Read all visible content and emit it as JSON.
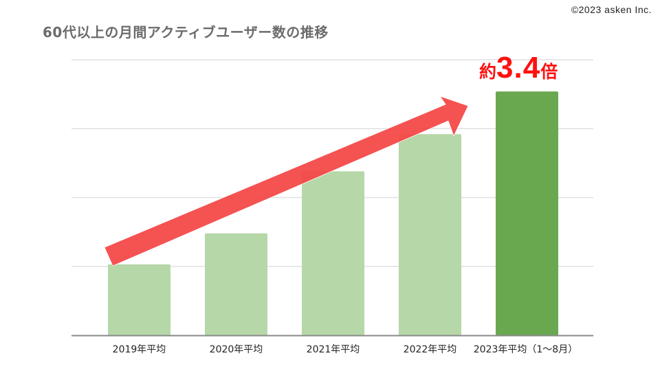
{
  "header": {
    "title": "60代以上の月間アクティブユーザー数の推移",
    "copyright": "©2023 asken Inc."
  },
  "annotation": {
    "prefix": "約",
    "value": "3.4",
    "suffix": "倍",
    "color": "#ff1010"
  },
  "colors": {
    "bar_light": "#b6d7a8",
    "bar_highlight": "#6aa84f",
    "arrow": "#f44545",
    "grid": "#e0e0e0",
    "axis": "#8a8a8a"
  },
  "chart_data": {
    "type": "bar",
    "title": "60代以上の月間アクティブユーザー数の推移",
    "xlabel": "",
    "ylabel": "",
    "categories": [
      "2019年平均",
      "2020年平均",
      "2021年平均",
      "2022年平均",
      "2023年平均（1～8月）"
    ],
    "values": [
      1.03,
      1.48,
      2.38,
      2.92,
      3.54
    ],
    "relative_to_2019": [
      1.0,
      1.44,
      2.3,
      2.8,
      3.4
    ],
    "ylim": [
      0,
      4
    ],
    "y_ticks_hidden": true,
    "grid": true,
    "gridlines": 4,
    "highlight_index": 4,
    "annotation": "約3.4倍",
    "trend_arrow": true,
    "legend": null
  }
}
